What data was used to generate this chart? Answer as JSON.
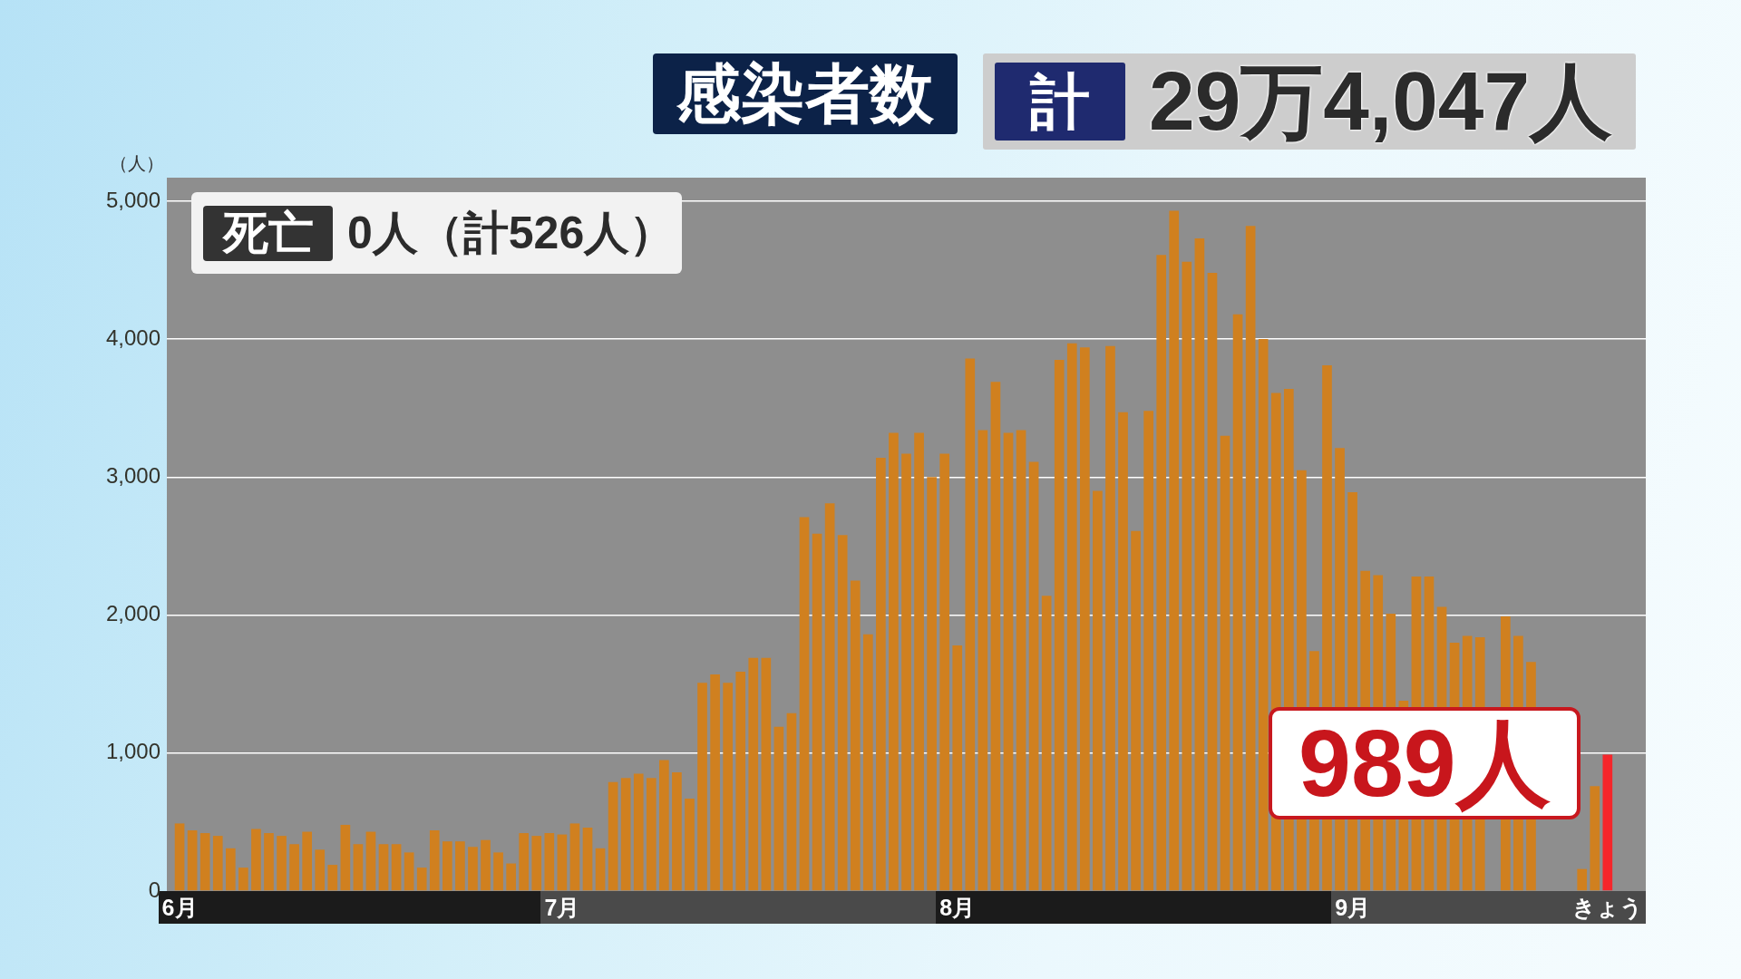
{
  "chart_data": {
    "type": "bar",
    "title": "感染者数",
    "ylabel": "（人）",
    "x": [
      "--06-01",
      "--06-02",
      "--06-03",
      "--06-04",
      "--06-05",
      "--06-06",
      "--06-07",
      "--06-08",
      "--06-09",
      "--06-10",
      "--06-11",
      "--06-12",
      "--06-13",
      "--06-14",
      "--06-15",
      "--06-16",
      "--06-17",
      "--06-18",
      "--06-19",
      "--06-20",
      "--06-21",
      "--06-22",
      "--06-23",
      "--06-24",
      "--06-25",
      "--06-26",
      "--06-27",
      "--06-28",
      "--06-29",
      "--06-30",
      "--07-01",
      "--07-02",
      "--07-03",
      "--07-04",
      "--07-05",
      "--07-06",
      "--07-07",
      "--07-08",
      "--07-09",
      "--07-10",
      "--07-11",
      "--07-12",
      "--07-13",
      "--07-14",
      "--07-15",
      "--07-16",
      "--07-17",
      "--07-18",
      "--07-19",
      "--07-20",
      "--07-21",
      "--07-22",
      "--07-23",
      "--07-24",
      "--07-25",
      "--07-26",
      "--07-27",
      "--07-28",
      "--07-29",
      "--07-30",
      "--07-31",
      "--08-01",
      "--08-02",
      "--08-03",
      "--08-04",
      "--08-05",
      "--08-06",
      "--08-07",
      "--08-08",
      "--08-09",
      "--08-10",
      "--08-11",
      "--08-12",
      "--08-13",
      "--08-14",
      "--08-15",
      "--08-16",
      "--08-17",
      "--08-18",
      "--08-19",
      "--08-20",
      "--08-21",
      "--08-22",
      "--08-23",
      "--08-24",
      "--08-25",
      "--08-26",
      "--08-27",
      "--08-28",
      "--08-29",
      "--08-30",
      "--08-31",
      "--09-01",
      "--09-02",
      "--09-03",
      "--09-04",
      "--09-05",
      "--09-06",
      "--09-07",
      "--09-08",
      "--09-09",
      "--09-10",
      "--09-11",
      "--09-12",
      "--09-13",
      "--09-14",
      "--09-15",
      "--09-16",
      "--09-17",
      "--09-18",
      "--09-19",
      "--09-20",
      "--09-21"
    ],
    "values": [
      490,
      440,
      420,
      400,
      310,
      170,
      450,
      420,
      400,
      340,
      430,
      300,
      190,
      480,
      340,
      430,
      340,
      340,
      280,
      170,
      440,
      360,
      360,
      320,
      370,
      280,
      200,
      420,
      400,
      420,
      410,
      490,
      460,
      310,
      790,
      820,
      850,
      820,
      950,
      860,
      670,
      1510,
      1570,
      1510,
      1590,
      1690,
      1690,
      1190,
      1290,
      2710,
      2590,
      2810,
      2580,
      2250,
      1860,
      3140,
      3320,
      3170,
      3320,
      3000,
      3170,
      1780,
      3860,
      3340,
      3690,
      3320,
      3340,
      3110,
      2140,
      3850,
      3970,
      3940,
      2900,
      3950,
      3470,
      2610,
      3480,
      4610,
      4930,
      4560,
      4730,
      4480,
      3300,
      4180,
      4820,
      4000,
      3610,
      3640,
      3050,
      1740,
      3810,
      3210,
      2890,
      2320,
      2290,
      2010,
      1380,
      2280,
      2280,
      2060,
      1800,
      1850,
      1840,
      null,
      1990,
      1850,
      1660,
      null,
      null,
      null,
      160,
      760,
      989
    ],
    "colors": [
      "#d0801f",
      "#d0801f",
      "#d0801f",
      "#d0801f",
      "#d0801f",
      "#d0801f",
      "#d0801f",
      "#d0801f",
      "#d0801f",
      "#d0801f",
      "#d0801f",
      "#d0801f",
      "#d0801f",
      "#d0801f",
      "#d0801f",
      "#d0801f",
      "#d0801f",
      "#d0801f",
      "#d0801f",
      "#d0801f",
      "#d0801f",
      "#d0801f",
      "#d0801f",
      "#d0801f",
      "#d0801f",
      "#d0801f",
      "#d0801f",
      "#d0801f",
      "#d0801f",
      "#d0801f",
      "#d0801f",
      "#d0801f",
      "#d0801f",
      "#d0801f",
      "#d0801f",
      "#d0801f",
      "#d0801f",
      "#d0801f",
      "#d0801f",
      "#d0801f",
      "#d0801f",
      "#d0801f",
      "#d0801f",
      "#d0801f",
      "#d0801f",
      "#d0801f",
      "#d0801f",
      "#d0801f",
      "#d0801f",
      "#d0801f",
      "#d0801f",
      "#d0801f",
      "#d0801f",
      "#d0801f",
      "#d0801f",
      "#d0801f",
      "#d0801f",
      "#d0801f",
      "#d0801f",
      "#d0801f",
      "#d0801f",
      "#d0801f",
      "#d0801f",
      "#d0801f",
      "#d0801f",
      "#d0801f",
      "#d0801f",
      "#d0801f",
      "#d0801f",
      "#d0801f",
      "#d0801f",
      "#d0801f",
      "#d0801f",
      "#d0801f",
      "#d0801f",
      "#d0801f",
      "#d0801f",
      "#d0801f",
      "#d0801f",
      "#d0801f",
      "#d0801f",
      "#d0801f",
      "#d0801f",
      "#d0801f",
      "#d0801f",
      "#d0801f",
      "#d0801f",
      "#d0801f",
      "#d0801f",
      "#d0801f",
      "#d0801f",
      "#d0801f",
      "#d0801f",
      "#d0801f",
      "#d0801f",
      "#d0801f",
      "#d0801f",
      "#d0801f",
      "#d0801f",
      "#d0801f",
      "#d0801f",
      "#d0801f",
      "#d0801f",
      "#d0801f",
      "#d0801f",
      "#d0801f",
      "#d0801f",
      "#d0801f",
      "#d0801f",
      "#d0801f",
      "#d0801f",
      "#d0801f",
      "#f5262b"
    ],
    "xlim": [
      "--05-31",
      "--09-24"
    ],
    "xticks": [
      {
        "value": "--06-01",
        "label": "6月"
      },
      {
        "value": "--07-01",
        "label": "7月"
      },
      {
        "value": "--08-01",
        "label": "8月"
      },
      {
        "value": "--09-01",
        "label": "9月"
      },
      {
        "value": "--09-21",
        "label": "きょう"
      }
    ],
    "ylim": [
      0,
      5170
    ],
    "yticks": [
      0,
      {
        "value": 1000,
        "label": "1,000"
      },
      {
        "value": 2000,
        "label": "2,000"
      },
      {
        "value": 3000,
        "label": "3,000"
      },
      {
        "value": 4000,
        "label": "4,000"
      },
      {
        "value": 5000,
        "label": "5,000"
      }
    ],
    "grid": "y",
    "annotations": [
      "計",
      "29万4,047人",
      "死亡",
      "0人（計526人）",
      {
        "text": "989人",
        "x": "--09-21",
        "y": 989
      }
    ]
  }
}
